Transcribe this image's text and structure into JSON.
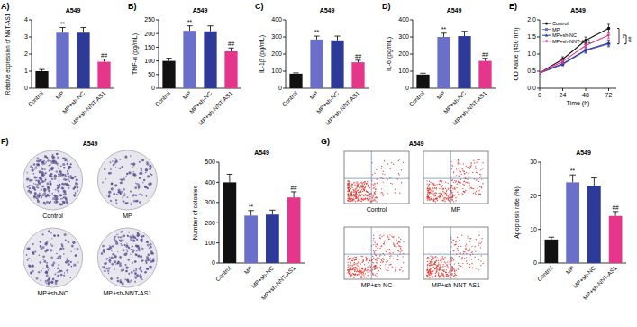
{
  "chart_data": [
    {
      "type": "bar",
      "panel_label": "A)",
      "title": "A549",
      "y_label": "Relative expression of NNT-AS1",
      "categories": [
        "Control",
        "MP",
        "MP+sh-NC",
        "MP+sh-NNT-AS1"
      ],
      "values": [
        1.0,
        3.25,
        3.25,
        1.55
      ],
      "errors": [
        0.1,
        0.3,
        0.3,
        0.15
      ],
      "colors": [
        "#111111",
        "#6a6fc9",
        "#2e3a98",
        "#e6368c"
      ],
      "ylim": [
        0,
        4
      ],
      "yticks": [
        0,
        1,
        2,
        3,
        4
      ],
      "annotations": [
        null,
        "**",
        null,
        "##"
      ]
    },
    {
      "type": "bar",
      "panel_label": "B)",
      "title": "A549",
      "y_label": "TNF-α (pg/mL)",
      "categories": [
        "Control",
        "MP",
        "MP+sh-NC",
        "MP+sh-NNT-AS1"
      ],
      "values": [
        100,
        210,
        208,
        135
      ],
      "errors": [
        10,
        18,
        20,
        12
      ],
      "colors": [
        "#111111",
        "#6a6fc9",
        "#2e3a98",
        "#e6368c"
      ],
      "ylim": [
        0,
        250
      ],
      "yticks": [
        0,
        50,
        100,
        150,
        200,
        250
      ],
      "annotations": [
        null,
        "**",
        null,
        "##"
      ]
    },
    {
      "type": "bar",
      "panel_label": "C)",
      "title": "A549",
      "y_label": "IL-1β (pg/mL)",
      "categories": [
        "Control",
        "MP",
        "MP+sh-NC",
        "MP+sh-NNT-AS1"
      ],
      "values": [
        85,
        285,
        280,
        152
      ],
      "errors": [
        5,
        20,
        25,
        12
      ],
      "colors": [
        "#111111",
        "#6a6fc9",
        "#2e3a98",
        "#e6368c"
      ],
      "ylim": [
        0,
        400
      ],
      "yticks": [
        0,
        100,
        200,
        300,
        400
      ],
      "annotations": [
        null,
        "**",
        null,
        "##"
      ]
    },
    {
      "type": "bar",
      "panel_label": "D)",
      "title": "A549",
      "y_label": "IL-6 (pg/mL)",
      "categories": [
        "Control",
        "MP",
        "MP+sh-NC",
        "MP+sh-NNT-AS1"
      ],
      "values": [
        80,
        300,
        305,
        160
      ],
      "errors": [
        8,
        22,
        28,
        15
      ],
      "colors": [
        "#111111",
        "#6a6fc9",
        "#2e3a98",
        "#e6368c"
      ],
      "ylim": [
        0,
        400
      ],
      "yticks": [
        0,
        100,
        200,
        300,
        400
      ],
      "annotations": [
        null,
        "**",
        null,
        "##"
      ]
    },
    {
      "type": "line",
      "panel_label": "E)",
      "title": "A549",
      "x_label": "Time (h)",
      "y_label": "OD value (450 nm)",
      "x": [
        0,
        24,
        48,
        72
      ],
      "xlim": [
        0,
        80
      ],
      "xticks": [
        0,
        24,
        48,
        72
      ],
      "ylim": [
        0,
        2
      ],
      "yticks": [
        {
          "value": 0,
          "label": "0.0"
        },
        0.5,
        {
          "value": 1,
          "label": "1.0"
        },
        1.5,
        {
          "value": 2,
          "label": "2.0"
        }
      ],
      "legend": "top-left",
      "series": [
        {
          "name": "Control",
          "color": "#111111",
          "marker": "circle",
          "values": [
            0.45,
            0.85,
            1.4,
            1.75
          ],
          "errors": [
            0.03,
            0.07,
            0.1,
            0.12
          ]
        },
        {
          "name": "MP",
          "color": "#6a6fc9",
          "marker": "square",
          "values": [
            0.45,
            0.7,
            1.1,
            1.3
          ],
          "errors": [
            0.03,
            0.05,
            0.08,
            0.09
          ]
        },
        {
          "name": "MP+sh-NC",
          "color": "#2e3a98",
          "marker": "triangle",
          "values": [
            0.45,
            0.72,
            1.12,
            1.32
          ],
          "errors": [
            0.03,
            0.05,
            0.08,
            0.09
          ]
        },
        {
          "name": "MP+sh-NNT-AS1",
          "color": "#e6368c",
          "marker": "triangle-down",
          "values": [
            0.45,
            0.78,
            1.25,
            1.55
          ],
          "errors": [
            0.03,
            0.06,
            0.09,
            0.1
          ]
        }
      ],
      "annotations": [
        "**",
        "##"
      ]
    },
    {
      "type": "bar",
      "panel_label": "F)",
      "title": "A549",
      "y_label": "Number of colonies",
      "image_title": "A549",
      "image_labels": [
        "Control",
        "MP",
        "MP+sh-NC",
        "MP+sh-NNT-AS1"
      ],
      "categories": [
        "Control",
        "MP",
        "MP+sh-NC",
        "MP+sh-NNT-AS1"
      ],
      "values": [
        400,
        235,
        240,
        325
      ],
      "errors": [
        40,
        25,
        22,
        28
      ],
      "colors": [
        "#111111",
        "#6a6fc9",
        "#2e3a98",
        "#e6368c"
      ],
      "ylim": [
        0,
        500
      ],
      "yticks": [
        0,
        100,
        200,
        300,
        400,
        500
      ],
      "annotations": [
        null,
        "**",
        null,
        "##"
      ]
    },
    {
      "type": "bar",
      "panel_label": "G)",
      "title": "A549",
      "y_label": "Apoptosis rate (%)",
      "image_title": "A549",
      "image_labels": [
        "Control",
        "MP",
        "MP+sh-NC",
        "MP+sh-NNT-AS1"
      ],
      "categories": [
        "Control",
        "MP",
        "MP+sh-NC",
        "MP+sh-NNT-AS1"
      ],
      "values": [
        7,
        24,
        23,
        14
      ],
      "errors": [
        0.7,
        2.2,
        2.3,
        1.3
      ],
      "colors": [
        "#111111",
        "#6a6fc9",
        "#2e3a98",
        "#e6368c"
      ],
      "ylim": [
        0,
        30
      ],
      "yticks": [
        0,
        10,
        20,
        30
      ],
      "annotations": [
        null,
        "**",
        null,
        "##"
      ]
    }
  ]
}
